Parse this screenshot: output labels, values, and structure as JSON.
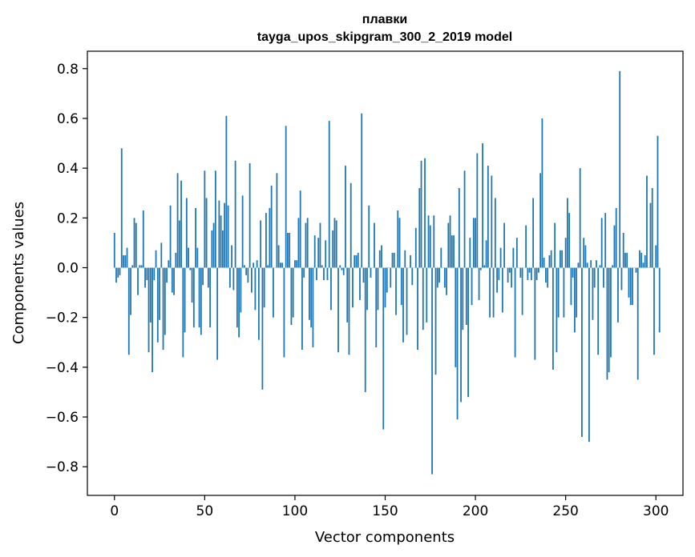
{
  "chart_data": {
    "type": "bar",
    "title": "плавки",
    "subtitle": "tayga_upos_skipgram_300_2_2019 model",
    "xlabel": "Vector components",
    "ylabel": "Components values",
    "xlim": [
      -15,
      315
    ],
    "ylim": [
      -0.915,
      0.87
    ],
    "xticks": [
      0,
      50,
      100,
      150,
      200,
      250,
      300
    ],
    "xtick_labels": [
      "0",
      "50",
      "100",
      "150",
      "200",
      "250",
      "300"
    ],
    "yticks": [
      0.8,
      0.6,
      0.4,
      0.2,
      0.0,
      -0.2,
      -0.4,
      -0.6,
      -0.8
    ],
    "ytick_labels": [
      "0.8",
      "0.6",
      "0.4",
      "0.2",
      "0.0",
      "−0.2",
      "−0.4",
      "−0.6",
      "−0.8"
    ],
    "bar_color": "#1f77b4",
    "grid": false,
    "series": [
      {
        "values": [
          0.14,
          -0.06,
          -0.04,
          -0.03,
          0.48,
          0.05,
          0.05,
          0.08,
          -0.35,
          -0.19,
          0.01,
          0.2,
          0.18,
          -0.11,
          0.01,
          0.01,
          0.23,
          -0.08,
          -0.05,
          -0.34,
          -0.22,
          -0.42,
          -0.05,
          0.07,
          -0.3,
          -0.21,
          0.1,
          -0.33,
          -0.27,
          -0.06,
          0.03,
          0.25,
          -0.1,
          -0.11,
          0.06,
          0.38,
          0.19,
          0.35,
          -0.36,
          -0.26,
          0.28,
          0.08,
          -0.01,
          -0.14,
          -0.24,
          0.24,
          0.08,
          -0.24,
          -0.27,
          -0.07,
          0.39,
          0.28,
          -0.08,
          -0.24,
          0.15,
          0.18,
          0.39,
          -0.37,
          0.27,
          0.21,
          0.15,
          0.26,
          0.61,
          0.25,
          -0.08,
          0.09,
          -0.09,
          0.43,
          -0.24,
          -0.28,
          -0.18,
          0.29,
          0.01,
          -0.03,
          -0.06,
          0.42,
          -0.1,
          0.02,
          -0.17,
          0.03,
          -0.29,
          0.19,
          -0.49,
          -0.16,
          0.22,
          0.01,
          0.24,
          0.33,
          -0.2,
          0.0,
          0.38,
          0.09,
          0.02,
          0.02,
          -0.36,
          0.57,
          0.14,
          0.14,
          -0.23,
          -0.2,
          0.03,
          0.03,
          0.2,
          0.31,
          -0.33,
          -0.04,
          0.18,
          0.2,
          -0.21,
          -0.24,
          -0.32,
          0.13,
          -0.05,
          0.12,
          0.18,
          0.01,
          -0.05,
          0.11,
          -0.05,
          0.59,
          -0.17,
          0.15,
          0.2,
          0.19,
          -0.34,
          0.01,
          -0.01,
          -0.03,
          0.41,
          -0.22,
          -0.35,
          0.34,
          -0.16,
          0.05,
          0.05,
          0.06,
          -0.13,
          0.62,
          -0.06,
          -0.5,
          -0.17,
          0.25,
          -0.04,
          0.0,
          0.18,
          -0.32,
          -0.17,
          0.07,
          0.09,
          -0.65,
          -0.16,
          -0.1,
          0.0,
          -0.08,
          0.06,
          0.06,
          -0.19,
          0.23,
          0.2,
          -0.15,
          -0.3,
          0.07,
          -0.27,
          0.0,
          0.05,
          -0.07,
          0.0,
          0.16,
          -0.33,
          0.32,
          0.43,
          -0.25,
          0.44,
          -0.22,
          0.21,
          0.17,
          -0.83,
          0.21,
          -0.43,
          -0.08,
          -0.06,
          0.08,
          0.0,
          -0.08,
          -0.11,
          0.18,
          0.21,
          0.13,
          0.13,
          -0.4,
          -0.61,
          0.32,
          -0.54,
          -0.25,
          0.39,
          -0.23,
          -0.52,
          0.12,
          -0.15,
          0.2,
          0.2,
          0.46,
          -0.13,
          -0.01,
          0.5,
          0.01,
          0.11,
          0.41,
          -0.2,
          0.37,
          -0.2,
          0.28,
          -0.1,
          -0.05,
          0.08,
          -0.18,
          0.18,
          0.0,
          -0.06,
          -0.02,
          -0.08,
          0.08,
          -0.36,
          0.12,
          0.0,
          -0.04,
          -0.19,
          0.0,
          0.17,
          -0.05,
          -0.02,
          -0.05,
          0.28,
          -0.37,
          -0.05,
          -0.02,
          0.38,
          0.6,
          0.04,
          -0.06,
          -0.08,
          0.05,
          0.07,
          -0.41,
          0.18,
          -0.34,
          -0.2,
          0.07,
          0.07,
          -0.2,
          0.12,
          0.28,
          0.22,
          -0.15,
          -0.04,
          -0.26,
          -0.2,
          0.02,
          0.4,
          -0.68,
          0.12,
          0.09,
          0.02,
          -0.7,
          0.03,
          -0.21,
          -0.08,
          0.03,
          -0.35,
          0.01,
          0.2,
          -0.08,
          0.22,
          -0.45,
          -0.42,
          -0.36,
          0.01,
          0.17,
          0.24,
          -0.22,
          0.79,
          -0.09,
          0.14,
          0.06,
          0.06,
          -0.12,
          -0.15,
          -0.15,
          0.0,
          -0.02,
          -0.45,
          0.07,
          0.06,
          0.02,
          0.05,
          0.37,
          0.0,
          0.26,
          0.32,
          -0.35,
          0.09,
          0.53,
          -0.26
        ]
      }
    ]
  }
}
